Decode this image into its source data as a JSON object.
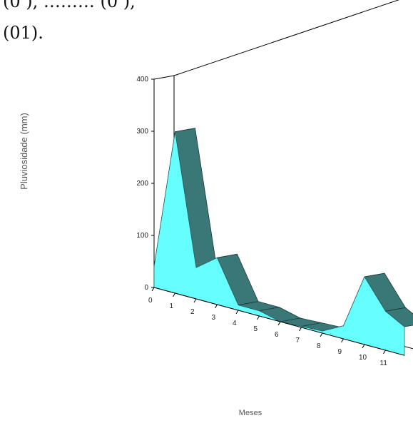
{
  "top_text": {
    "line1": "(0 ), ……… (0 ),",
    "line2": "(01)."
  },
  "colors": {
    "front": "#66ffff",
    "top": "#3a7878",
    "edge": "#1a3a3a",
    "axis": "#000000",
    "label": "#555555"
  },
  "chart_data": {
    "type": "area",
    "style": "3d",
    "title": "",
    "xlabel": "Meses",
    "ylabel": "Pluviosidade (mm)",
    "ylim": [
      0,
      400
    ],
    "x_ticks": [
      "0",
      "1",
      "2",
      "3",
      "4",
      "5",
      "6",
      "7",
      "8",
      "9",
      "10",
      "11"
    ],
    "y_ticks": [
      "0",
      "100",
      "200",
      "300",
      "400"
    ],
    "x": [
      0,
      1,
      2,
      3,
      4,
      5,
      6,
      7,
      8,
      9,
      10,
      11
    ],
    "values": [
      40,
      310,
      60,
      90,
      10,
      10,
      0,
      2,
      4,
      25,
      130,
      75
    ],
    "grid": false
  }
}
